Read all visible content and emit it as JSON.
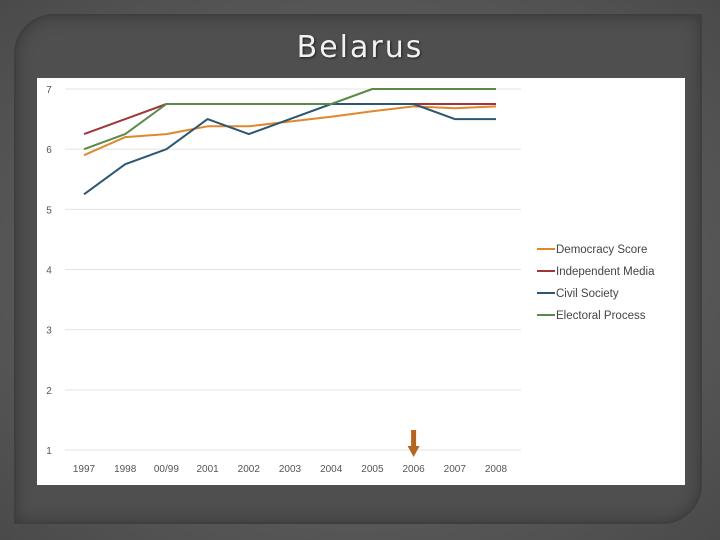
{
  "slide": {
    "title": "Belarus"
  },
  "chart_data": {
    "type": "line",
    "categories": [
      "1997",
      "1998",
      "00/99",
      "2001",
      "2002",
      "2003",
      "2004",
      "2005",
      "2006",
      "2007",
      "2008"
    ],
    "ylim": [
      1,
      7
    ],
    "yticks": [
      1,
      2,
      3,
      4,
      5,
      6,
      7
    ],
    "grid": true,
    "legend_position": "right",
    "series": [
      {
        "name": "Democracy Score",
        "color": "#e0882e",
        "values": [
          5.9,
          6.2,
          6.25,
          6.38,
          6.38,
          6.46,
          6.54,
          6.63,
          6.71,
          6.68,
          6.71
        ]
      },
      {
        "name": "Independent Media",
        "color": "#a0363a",
        "values": [
          6.25,
          6.5,
          6.75,
          6.75,
          6.75,
          6.75,
          6.75,
          6.75,
          6.75,
          6.75,
          6.75
        ]
      },
      {
        "name": "Civil Society",
        "color": "#2b5773",
        "values": [
          5.25,
          5.75,
          6.0,
          6.5,
          6.25,
          6.5,
          6.75,
          6.75,
          6.75,
          6.5,
          6.5
        ]
      },
      {
        "name": "Electoral Process",
        "color": "#5a8a4a",
        "values": [
          6.0,
          6.25,
          6.75,
          6.75,
          6.75,
          6.75,
          6.75,
          7.0,
          7.0,
          7.0,
          7.0
        ]
      }
    ],
    "annotation": {
      "type": "arrow",
      "category": "2006",
      "color": "#b5651d"
    }
  }
}
